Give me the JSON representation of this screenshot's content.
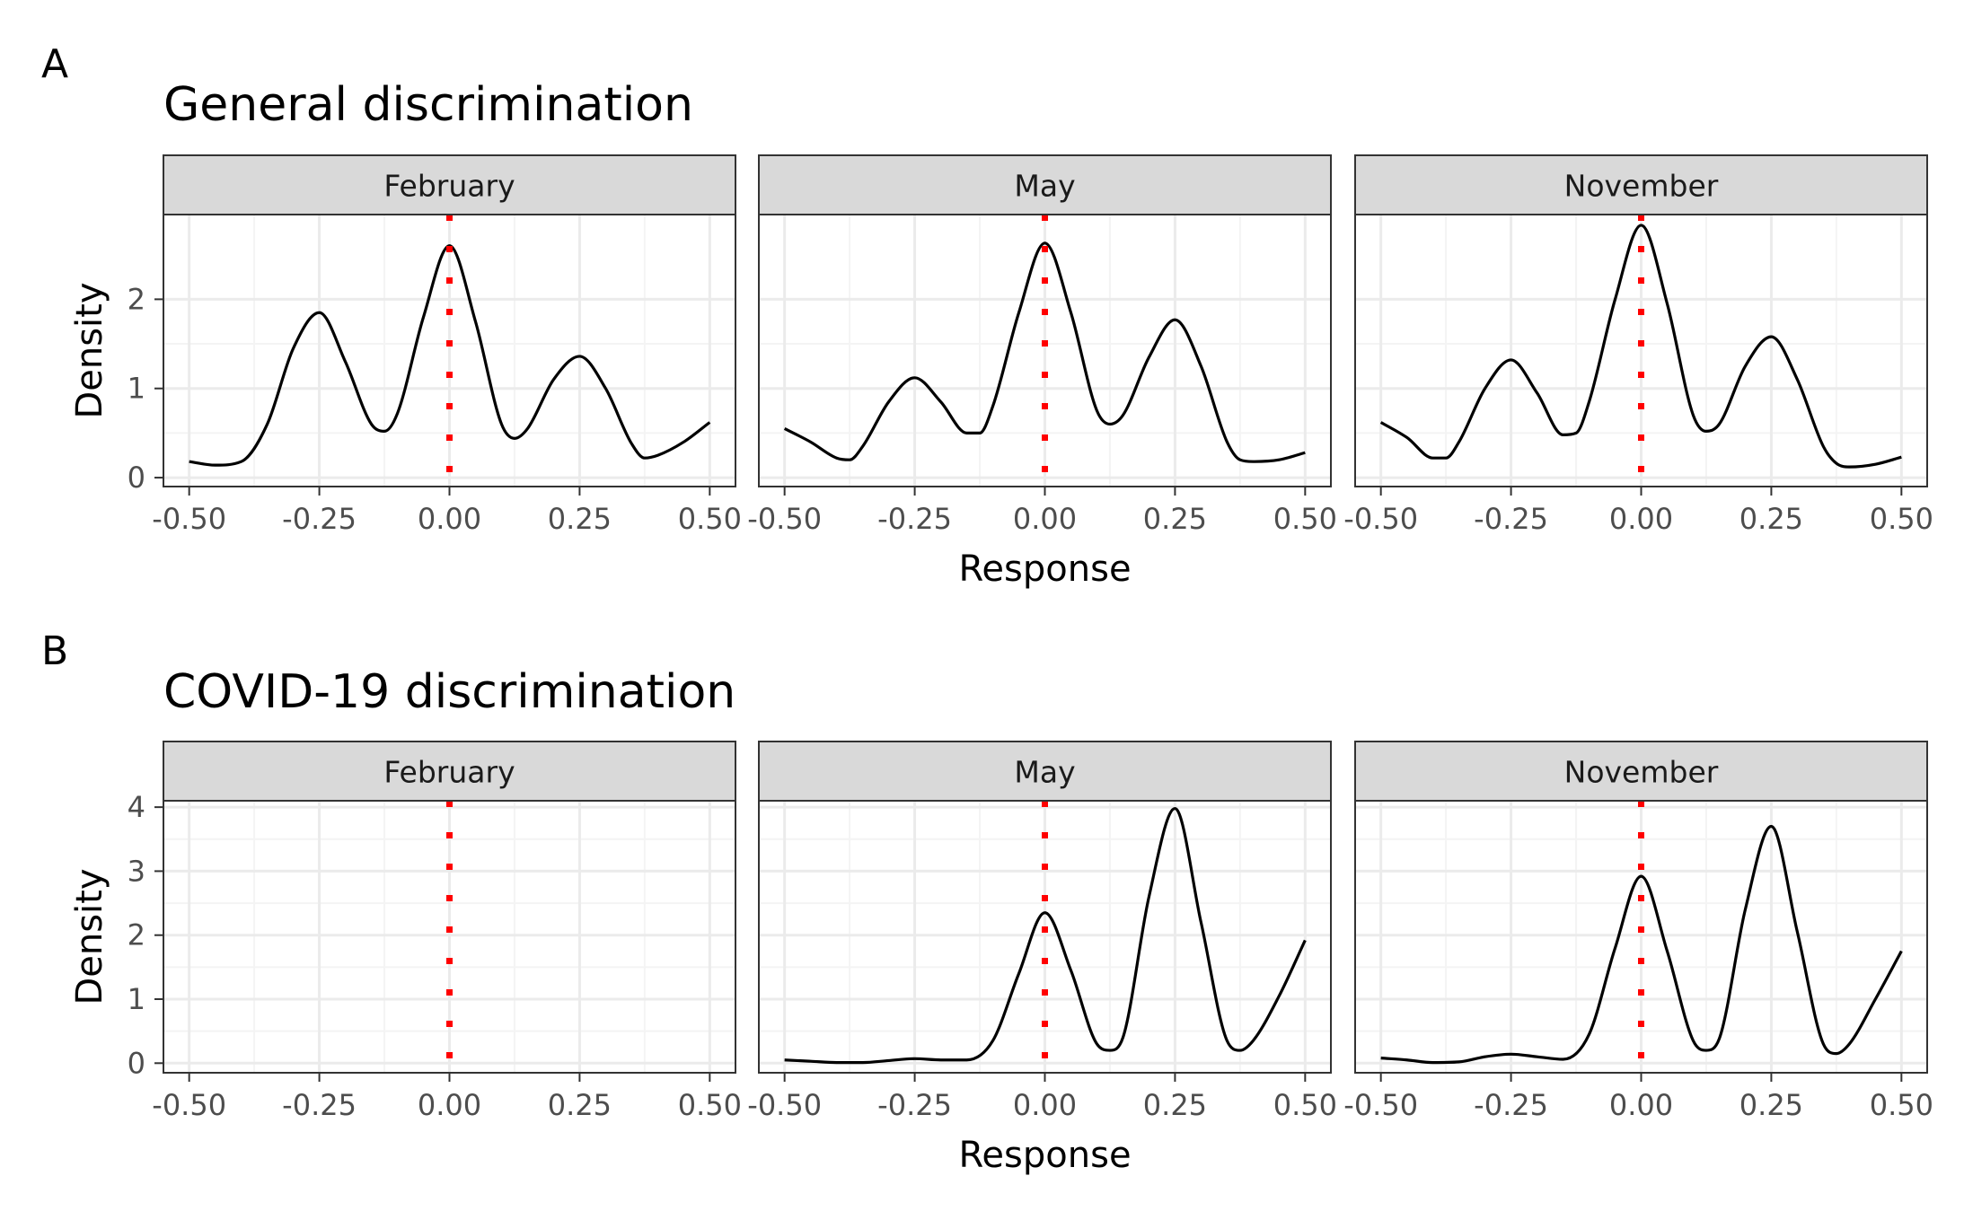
{
  "colors": {
    "strip_fill": "#d9d9d9",
    "panel_border": "#333333",
    "grid_major": "#ebebeb",
    "grid_minor": "#f4f4f4",
    "density_line": "#000000",
    "reference_line": "#ff0000",
    "tick_text": "#4d4d4d"
  },
  "chart_data": [
    {
      "type": "line",
      "tag": "A",
      "title": "General discrimination",
      "xlabel": "Response",
      "ylabel": "Density",
      "xlim": [
        -0.5,
        0.5
      ],
      "ylim": [
        -0.1,
        2.95
      ],
      "x_ticks": [
        -0.5,
        -0.25,
        0,
        0.25,
        0.5
      ],
      "x_tick_labels": [
        "-0.50",
        "-0.25",
        "0.00",
        "0.25",
        "0.50"
      ],
      "y_ticks": [
        0,
        1,
        2
      ],
      "y_tick_labels": [
        "0",
        "1",
        "2"
      ],
      "reference_line": {
        "x": 0,
        "style": "dotted"
      },
      "facets": [
        {
          "label": "February",
          "x": [
            -0.5,
            -0.45,
            -0.4,
            -0.35,
            -0.3,
            -0.25,
            -0.2,
            -0.15,
            -0.125,
            -0.1,
            -0.05,
            0,
            0.05,
            0.1,
            0.125,
            0.15,
            0.2,
            0.25,
            0.3,
            0.35,
            0.375,
            0.4,
            0.45,
            0.5
          ],
          "y": [
            0.18,
            0.14,
            0.18,
            0.6,
            1.45,
            1.85,
            1.3,
            0.6,
            0.52,
            0.72,
            1.8,
            2.6,
            1.75,
            0.6,
            0.44,
            0.55,
            1.1,
            1.36,
            1.0,
            0.38,
            0.22,
            0.25,
            0.4,
            0.62
          ]
        },
        {
          "label": "May",
          "x": [
            -0.5,
            -0.45,
            -0.4,
            -0.375,
            -0.35,
            -0.3,
            -0.25,
            -0.2,
            -0.15,
            -0.125,
            -0.1,
            -0.05,
            0,
            0.05,
            0.1,
            0.125,
            0.15,
            0.2,
            0.25,
            0.3,
            0.35,
            0.375,
            0.4,
            0.45,
            0.5
          ],
          "y": [
            0.55,
            0.4,
            0.22,
            0.2,
            0.35,
            0.85,
            1.12,
            0.85,
            0.5,
            0.5,
            0.8,
            1.85,
            2.63,
            1.85,
            0.75,
            0.6,
            0.7,
            1.35,
            1.77,
            1.25,
            0.4,
            0.2,
            0.18,
            0.2,
            0.28
          ]
        },
        {
          "label": "November",
          "x": [
            -0.5,
            -0.45,
            -0.4,
            -0.375,
            -0.35,
            -0.3,
            -0.25,
            -0.2,
            -0.15,
            -0.125,
            -0.1,
            -0.05,
            0,
            0.05,
            0.1,
            0.125,
            0.15,
            0.2,
            0.25,
            0.3,
            0.35,
            0.375,
            0.4,
            0.45,
            0.5
          ],
          "y": [
            0.62,
            0.45,
            0.22,
            0.22,
            0.4,
            1.0,
            1.32,
            0.95,
            0.48,
            0.5,
            0.85,
            2.0,
            2.83,
            1.95,
            0.7,
            0.52,
            0.6,
            1.25,
            1.58,
            1.1,
            0.35,
            0.16,
            0.12,
            0.15,
            0.23
          ]
        }
      ]
    },
    {
      "type": "line",
      "tag": "B",
      "title": "COVID-19 discrimination",
      "xlabel": "Response",
      "ylabel": "Density",
      "xlim": [
        -0.5,
        0.5
      ],
      "ylim": [
        -0.15,
        4.1
      ],
      "x_ticks": [
        -0.5,
        -0.25,
        0,
        0.25,
        0.5
      ],
      "x_tick_labels": [
        "-0.50",
        "-0.25",
        "0.00",
        "0.25",
        "0.50"
      ],
      "y_ticks": [
        0,
        1,
        2,
        3,
        4
      ],
      "y_tick_labels": [
        "0",
        "1",
        "2",
        "3",
        "4"
      ],
      "reference_line": {
        "x": 0,
        "style": "dotted"
      },
      "facets": [
        {
          "label": "February",
          "x": [],
          "y": []
        },
        {
          "label": "May",
          "x": [
            -0.5,
            -0.45,
            -0.4,
            -0.35,
            -0.3,
            -0.25,
            -0.2,
            -0.15,
            -0.1,
            -0.05,
            0,
            0.05,
            0.1,
            0.125,
            0.15,
            0.2,
            0.25,
            0.3,
            0.35,
            0.375,
            0.4,
            0.45,
            0.5
          ],
          "y": [
            0.05,
            0.03,
            0.01,
            0.01,
            0.04,
            0.07,
            0.05,
            0.05,
            0.35,
            1.4,
            2.35,
            1.45,
            0.3,
            0.2,
            0.4,
            2.6,
            3.98,
            2.2,
            0.35,
            0.2,
            0.35,
            1.05,
            1.92
          ]
        },
        {
          "label": "November",
          "x": [
            -0.5,
            -0.45,
            -0.4,
            -0.35,
            -0.3,
            -0.25,
            -0.2,
            -0.15,
            -0.1,
            -0.05,
            0,
            0.05,
            0.1,
            0.125,
            0.15,
            0.2,
            0.25,
            0.3,
            0.35,
            0.375,
            0.4,
            0.45,
            0.5
          ],
          "y": [
            0.08,
            0.05,
            0.01,
            0.02,
            0.1,
            0.14,
            0.1,
            0.06,
            0.45,
            1.8,
            2.92,
            1.75,
            0.35,
            0.2,
            0.38,
            2.4,
            3.7,
            2.05,
            0.3,
            0.15,
            0.3,
            1.0,
            1.75
          ]
        }
      ]
    }
  ]
}
